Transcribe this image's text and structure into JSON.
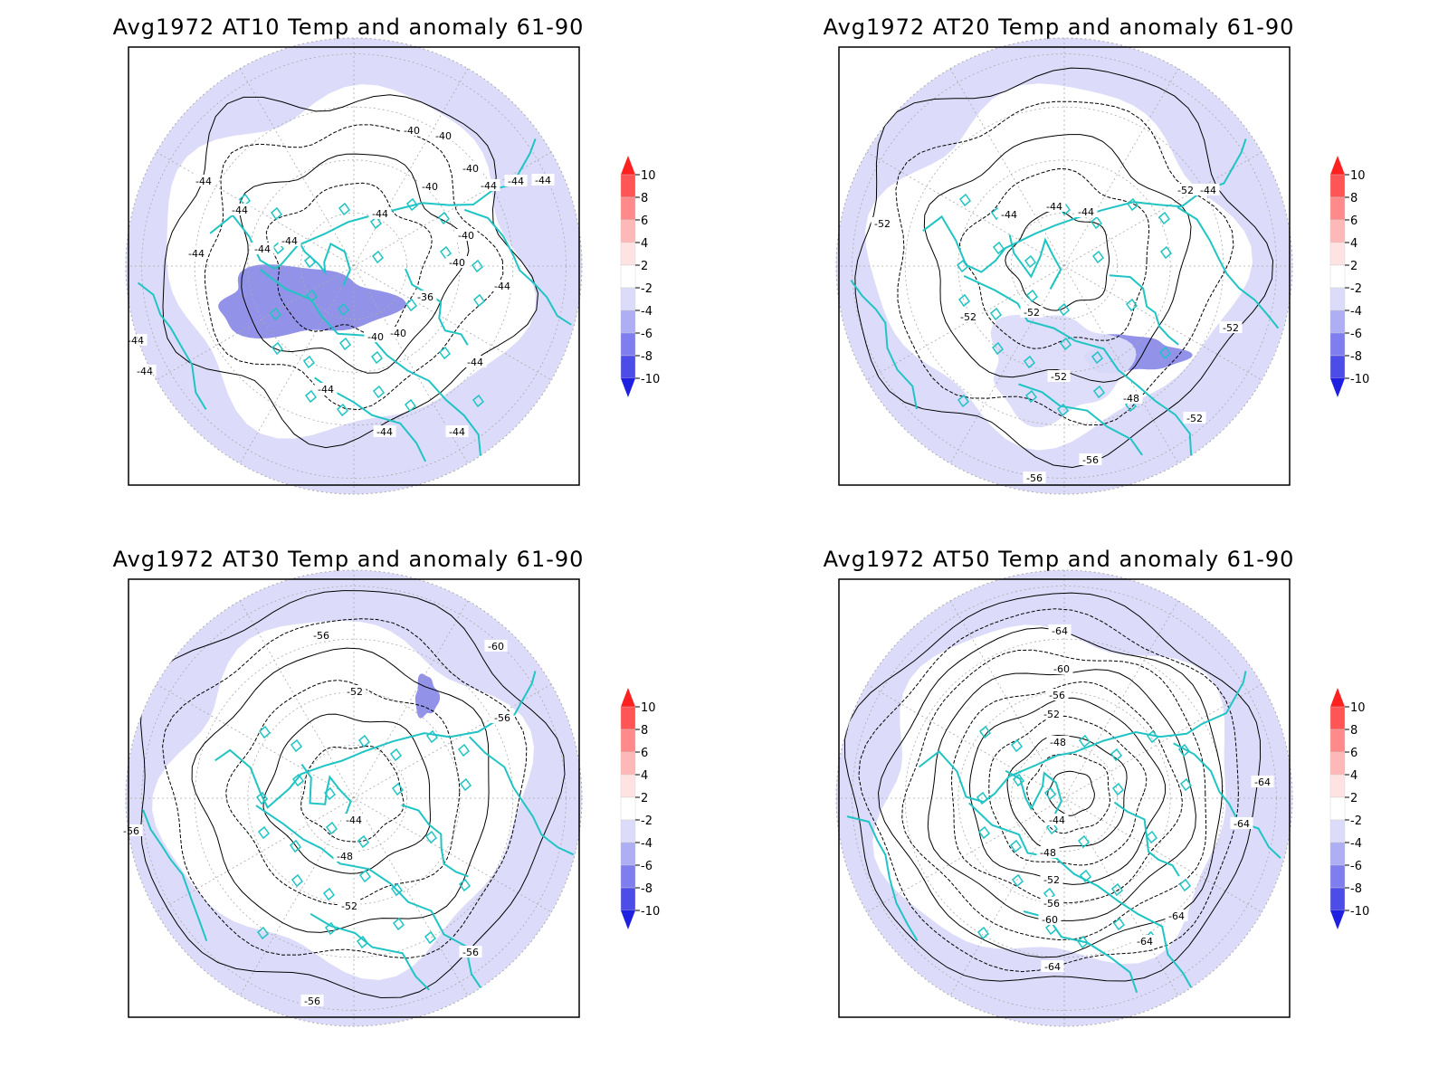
{
  "figure": {
    "panels": [
      {
        "title": "Avg1972 AT10 Temp and anomaly 61-90",
        "contour_labels": [
          "-44",
          "-44",
          "-44",
          "-44",
          "-44",
          "-44",
          "-44",
          "-44",
          "-40",
          "-40",
          "-40",
          "-36",
          "-40",
          "-40",
          "-44",
          "-44",
          "-44",
          "-44",
          "-44",
          "-44",
          "-44",
          "-44",
          "-40",
          "-40",
          "-40"
        ]
      },
      {
        "title": "Avg1972 AT20 Temp and anomaly 61-90",
        "contour_labels": [
          "-52",
          "-52",
          "-44",
          "-44",
          "-44",
          "-44",
          "-52",
          "-52",
          "-48",
          "-52",
          "-56",
          "-56",
          "-52",
          "-52"
        ]
      },
      {
        "title": "Avg1972 AT30 Temp and anomaly 61-90",
        "contour_labels": [
          "-56",
          "-60",
          "-52",
          "-56",
          "-44",
          "-48",
          "-52",
          "-56",
          "-56",
          "-56"
        ]
      },
      {
        "title": "Avg1972 AT50 Temp and anomaly 61-90",
        "contour_labels": [
          "-64",
          "-60",
          "-56",
          "-52",
          "-48",
          "-44",
          "-48",
          "-52",
          "-56",
          "-60",
          "-64",
          "-64",
          "-64",
          "-64",
          "-64"
        ]
      }
    ],
    "colorbar": {
      "tick_labels": [
        "10",
        "8",
        "6",
        "4",
        "2",
        "-2",
        "-4",
        "-6",
        "-8",
        "-10"
      ],
      "colors": [
        "#ff2020",
        "#ff5555",
        "#ff8a8a",
        "#ffb8b8",
        "#ffe2e2",
        "#ffffff",
        "#dcdcfa",
        "#aeaef5",
        "#7e7eef",
        "#4c4ce8",
        "#2020e0"
      ]
    },
    "palette": {
      "coast": "#20c4c4",
      "anomaly_light": "#dcdcfa",
      "anomaly_medium": "#aeaef0",
      "anomaly_strong": "#8c8ce8",
      "frame": "#000000",
      "contour": "#000000",
      "grid": "#aaaaaa"
    }
  }
}
